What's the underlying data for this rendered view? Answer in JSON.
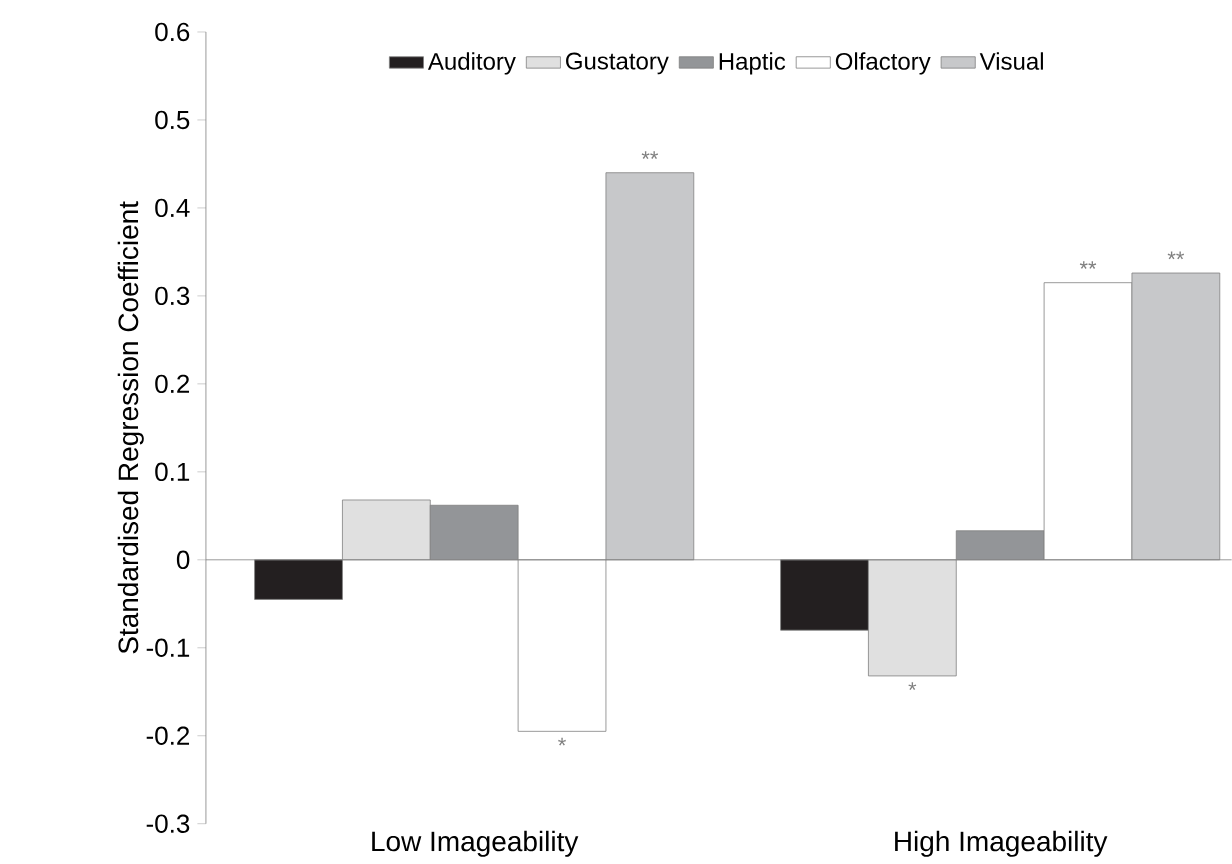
{
  "chart_data": {
    "type": "bar",
    "ylabel": "Standardised Regression Coefficient",
    "categories": [
      "Low Imageability",
      "High Imageability"
    ],
    "series": [
      {
        "name": "Auditory",
        "color": "#231f20",
        "values": [
          -0.045,
          -0.08
        ]
      },
      {
        "name": "Gustatory",
        "color": "#e0e0e0",
        "values": [
          0.068,
          -0.132
        ],
        "value_labels": [
          null,
          "*"
        ]
      },
      {
        "name": "Haptic",
        "color": "#939598",
        "values": [
          0.062,
          0.033
        ]
      },
      {
        "name": "Olfactory",
        "color": "#ffffff",
        "values": [
          -0.195,
          0.315
        ],
        "value_labels": [
          "*",
          "**"
        ]
      },
      {
        "name": "Visual",
        "color": "#c7c8ca",
        "values": [
          0.44,
          0.326
        ],
        "value_labels": [
          "**",
          "**"
        ]
      }
    ],
    "ylim": [
      -0.3,
      0.6
    ],
    "yticks": [
      -0.3,
      -0.2,
      -0.1,
      0,
      0.1,
      0.2,
      0.3,
      0.4,
      0.5,
      0.6
    ],
    "legend": "top"
  }
}
